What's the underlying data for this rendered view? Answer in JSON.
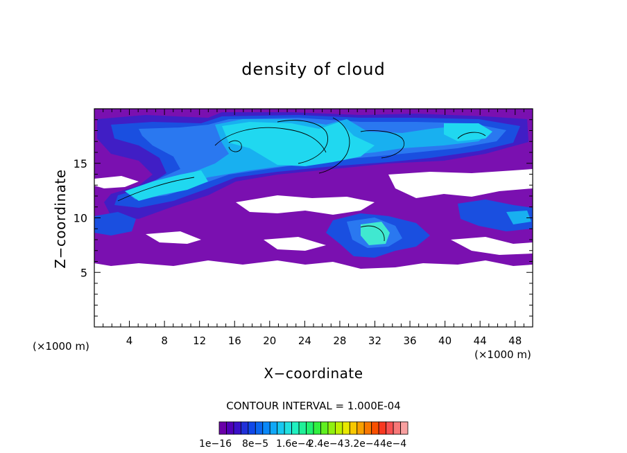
{
  "chart_data": {
    "type": "heatmap",
    "title": "density of cloud",
    "xlabel": "X−coordinate",
    "ylabel": "Z−coordinate",
    "x_unit": "(×1000 m)",
    "y_unit": "(×1000 m)",
    "xlim": [
      0,
      50
    ],
    "ylim": [
      0,
      20
    ],
    "x_ticks": [
      4,
      8,
      12,
      16,
      20,
      24,
      28,
      32,
      36,
      40,
      44,
      48
    ],
    "y_ticks": [
      5,
      10,
      15
    ],
    "contour_interval": "CONTOUR INTERVAL = 1.000E-04",
    "colorbar": {
      "labels": [
        "1e−16",
        "8e−5",
        "1.6e−4",
        "2.4e−4",
        "3.2e−4",
        "4e−4"
      ],
      "colors": [
        "#6a00a8",
        "#5000b8",
        "#3a10c8",
        "#2030d8",
        "#1048e8",
        "#0a66f0",
        "#0a88f8",
        "#10a8f8",
        "#18c8f0",
        "#20e0e0",
        "#20f0c0",
        "#20f098",
        "#20f070",
        "#30f040",
        "#60f020",
        "#90f010",
        "#c0f000",
        "#e8e800",
        "#f8c800",
        "#f8a000",
        "#f87800",
        "#f85000",
        "#f83820",
        "#f85050",
        "#f87878",
        "#f8a0a0"
      ]
    },
    "colors": {
      "background": "#ffffff",
      "lowest_level": "#7a10b0",
      "mid_level": "#1a4fe0",
      "high_level": "#20d8f0"
    },
    "grid": false
  }
}
